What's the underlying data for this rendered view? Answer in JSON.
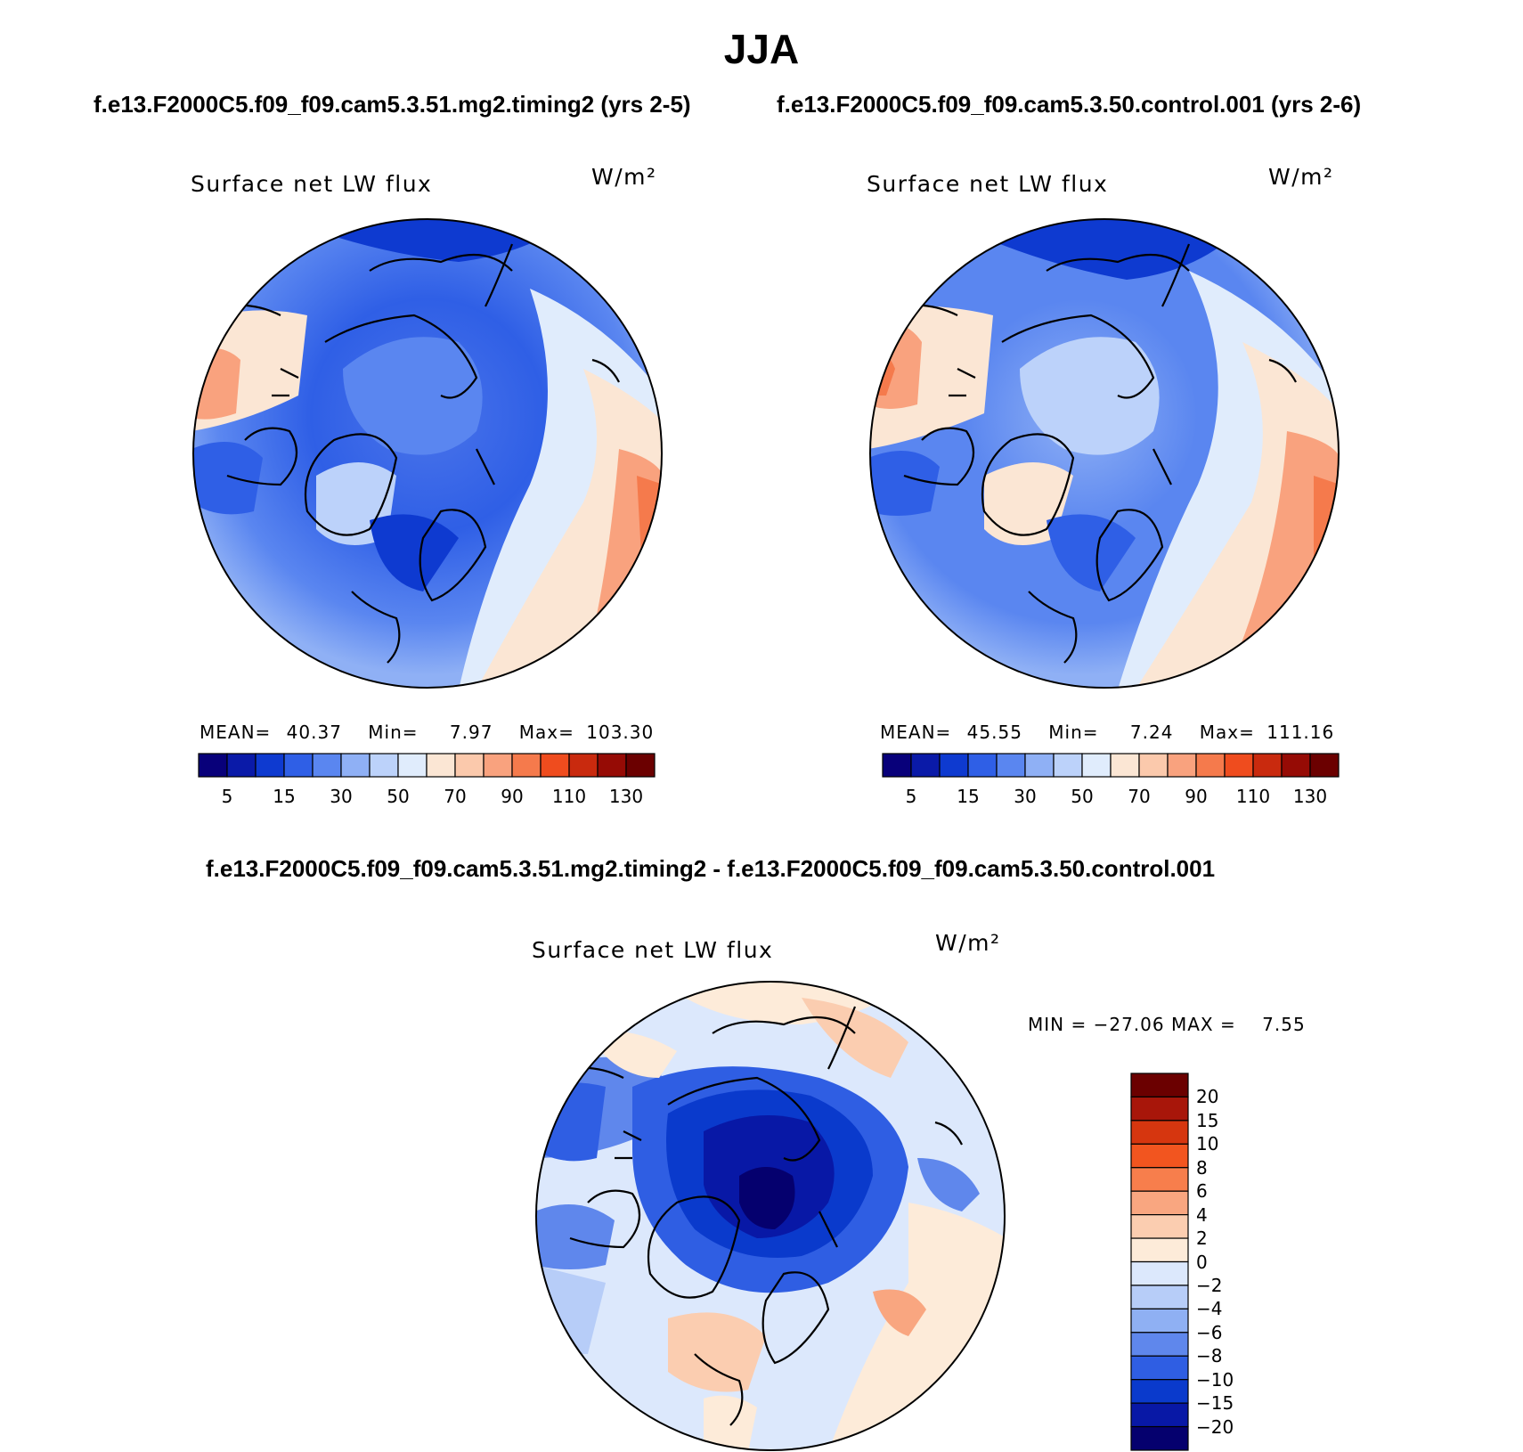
{
  "title": "JJA",
  "panels": [
    {
      "case_title": "f.e13.F2000C5.f09_f09.cam5.3.51.mg2.timing2 (yrs 2-5)",
      "variable": "Surface net LW flux",
      "units": "W/m²",
      "stats": {
        "mean_label": "MEAN=",
        "mean": "40.37",
        "min_label": "Min=",
        "min": "7.97",
        "max_label": "Max=",
        "max": "103.30"
      },
      "colorbar_labels": [
        "5",
        "15",
        "30",
        "50",
        "70",
        "90",
        "110",
        "130"
      ]
    },
    {
      "case_title": "f.e13.F2000C5.f09_f09.cam5.3.50.control.001 (yrs 2-6)",
      "variable": "Surface net LW flux",
      "units": "W/m²",
      "stats": {
        "mean_label": "MEAN=",
        "mean": "45.55",
        "min_label": "Min=",
        "min": "7.24",
        "max_label": "Max=",
        "max": "111.16"
      },
      "colorbar_labels": [
        "5",
        "15",
        "30",
        "50",
        "70",
        "90",
        "110",
        "130"
      ]
    }
  ],
  "diff_panel": {
    "case_title": "f.e13.F2000C5.f09_f09.cam5.3.51.mg2.timing2 - f.e13.F2000C5.f09_f09.cam5.3.50.control.001",
    "variable": "Surface net LW flux",
    "units": "W/m²",
    "min_max": "MIN = −27.06 MAX =    7.55",
    "colorbar_labels": [
      "20",
      "15",
      "10",
      "8",
      "6",
      "4",
      "2",
      "0",
      "−2",
      "−4",
      "−6",
      "−8",
      "−10",
      "−15",
      "−20"
    ]
  },
  "colors": {
    "abs_scale": [
      "#08007a",
      "#0a1aa8",
      "#0e3ad0",
      "#2f5fe6",
      "#5a86f0",
      "#8fb0f5",
      "#bcd2fa",
      "#e0ecfc",
      "#fbe6d4",
      "#fbc9ac",
      "#f9a27e",
      "#f57a4c",
      "#ef4c1e",
      "#c92a0e",
      "#960b05",
      "#6b0000"
    ],
    "diff_scale": [
      "#6b0000",
      "#a8160a",
      "#d6360f",
      "#f2551f",
      "#f77e4c",
      "#f9a680",
      "#fbcdb0",
      "#fdebd9",
      "#dce8fc",
      "#b7cdf8",
      "#8fb0f3",
      "#5f87ec",
      "#2f5ee3",
      "#0a3acc",
      "#0818a6",
      "#05006e"
    ]
  }
}
